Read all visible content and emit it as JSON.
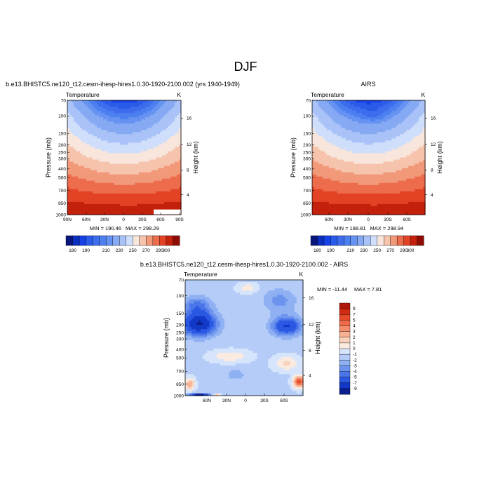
{
  "figure_title": "DJF",
  "chart_data": [
    {
      "type": "heatmap",
      "id": "model",
      "title": "b.e13.BHISTC5.ne120_t12.cesm-ihesp-hires1.0.30-1920-2100.002 (yrs 1940-1949)",
      "variable": "Temperature",
      "units": "K",
      "ylabel": "Pressure (mb)",
      "ylabel_right": "Height (km)",
      "x_ticks": [
        "90N",
        "60N",
        "30N",
        "0",
        "30S",
        "60S",
        "90S"
      ],
      "y_ticks": [
        "70",
        "100",
        "150",
        "200",
        "250",
        "300",
        "400",
        "500",
        "700",
        "850",
        "1000"
      ],
      "height_ticks": [
        "16",
        "12",
        "8",
        "4"
      ],
      "min_label": "MIN = 190.46",
      "max_label": "MAX = 298.29",
      "contour_levels": [
        180,
        185,
        190,
        195,
        200,
        205,
        210,
        220,
        230,
        240,
        250,
        260,
        270,
        280,
        290,
        300
      ],
      "colorbar_labels": [
        "180",
        "190",
        "210",
        "230",
        "250",
        "270",
        "290",
        "300"
      ],
      "colors": [
        "#08167b",
        "#0a2fbe",
        "#1440e6",
        "#2a5ae8",
        "#3d6ded",
        "#4c7ff0",
        "#6692f2",
        "#86a9f4",
        "#a9c2f7",
        "#cfdefa",
        "#f8e6dc",
        "#f6c3ac",
        "#f2997a",
        "#ec6c4c",
        "#e34325",
        "#c4210c",
        "#8e0c04"
      ]
    },
    {
      "type": "heatmap",
      "id": "obs",
      "title": "AIRS",
      "variable": "Temperature",
      "units": "K",
      "ylabel": "Pressure (mb)",
      "ylabel_right": "Height (km)",
      "x_ticks": [
        "60N",
        "30N",
        "0",
        "30S",
        "60S"
      ],
      "y_ticks": [
        "70",
        "100",
        "150",
        "200",
        "250",
        "300",
        "400",
        "500",
        "700",
        "850",
        "1000"
      ],
      "height_ticks": [
        "16",
        "12",
        "8",
        "4"
      ],
      "min_label": "MIN = 188.81",
      "max_label": "MAX = 298.94",
      "contour_levels": [
        180,
        185,
        190,
        195,
        200,
        205,
        210,
        220,
        230,
        240,
        250,
        260,
        270,
        280,
        290,
        300
      ],
      "colorbar_labels": [
        "180",
        "190",
        "210",
        "230",
        "250",
        "270",
        "290",
        "300"
      ],
      "colors": [
        "#08167b",
        "#0a2fbe",
        "#1440e6",
        "#2a5ae8",
        "#3d6ded",
        "#4c7ff0",
        "#6692f2",
        "#86a9f4",
        "#a9c2f7",
        "#cfdefa",
        "#f8e6dc",
        "#f6c3ac",
        "#f2997a",
        "#ec6c4c",
        "#e34325",
        "#c4210c",
        "#8e0c04"
      ]
    },
    {
      "type": "heatmap",
      "id": "diff",
      "title": "b.e13.BHISTC5.ne120_t12.cesm-ihesp-hires1.0.30-1920-2100.002 - AIRS",
      "variable": "Temperature",
      "units": "K",
      "ylabel": "Pressure (mb)",
      "ylabel_right": "Height (km)",
      "x_ticks": [
        "60N",
        "30N",
        "0",
        "30S",
        "60S"
      ],
      "y_ticks": [
        "70",
        "100",
        "150",
        "200",
        "250",
        "300",
        "400",
        "500",
        "700",
        "850",
        "1000"
      ],
      "height_ticks": [
        "16",
        "12",
        "8",
        "4"
      ],
      "min_label": "MIN = -11.44",
      "max_label": "MAX =   7.81",
      "colorbar_labels": [
        "9",
        "7",
        "5",
        "4",
        "3",
        "2",
        "1",
        "0",
        "-1",
        "-2",
        "-3",
        "-4",
        "-5",
        "-7",
        "-9"
      ],
      "colors": [
        "#b0150a",
        "#d22a12",
        "#e6492a",
        "#ef6a48",
        "#f48d6b",
        "#f7b092",
        "#f9d2bc",
        "#fbeae0",
        "#d6e5fb",
        "#b4ccf7",
        "#8fb0f3",
        "#6c93ee",
        "#4a76e9",
        "#2a58e3",
        "#1238c8",
        "#0a1e8f"
      ]
    }
  ]
}
